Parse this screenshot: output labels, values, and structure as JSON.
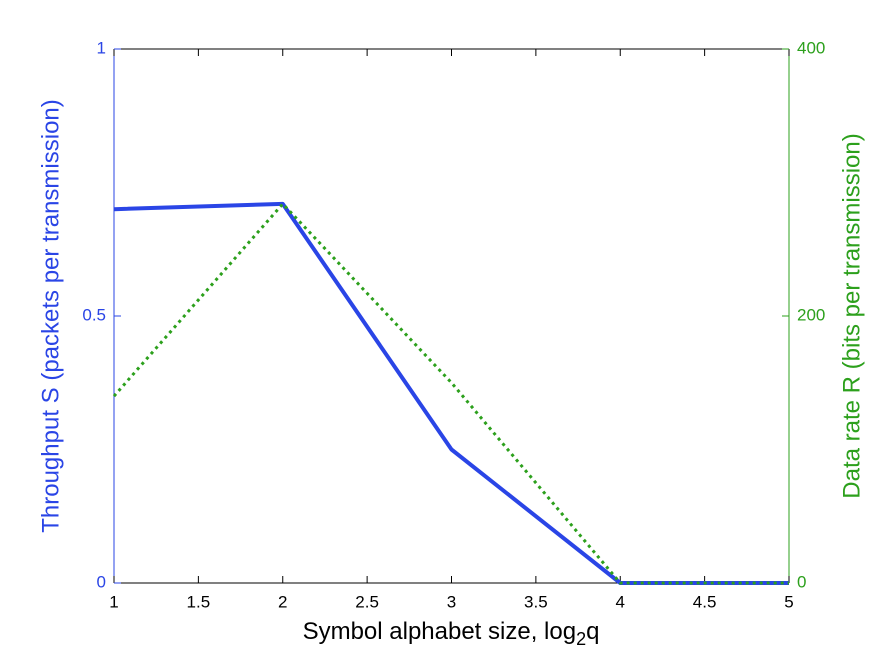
{
  "chart_data": {
    "type": "line",
    "x_label": [
      "Symbol alphabet size, log",
      "2",
      "q"
    ],
    "y_label": "Throughput S (packets per transmission)",
    "y2_label": "Data rate R (bits per transmission)",
    "x": [
      1,
      2,
      3,
      4,
      5
    ],
    "series": [
      {
        "name": "Throughput S",
        "color": "#2a45e6",
        "style": "solid",
        "values": [
          0.7,
          0.71,
          0.25,
          0,
          0
        ]
      },
      {
        "name": "Data rate R",
        "color": "#2ca01c",
        "style": "dotted",
        "axis": "y2",
        "values": [
          140,
          284,
          150,
          0,
          0
        ]
      }
    ],
    "xlim": [
      1,
      5
    ],
    "xticks": [
      1,
      1.5,
      2,
      2.5,
      3,
      3.5,
      4,
      4.5,
      5
    ],
    "ylim": [
      0,
      1
    ],
    "yticks": [
      0,
      0.5,
      1
    ],
    "y2lim": [
      0,
      400
    ],
    "y2ticks": [
      0,
      200,
      400
    ],
    "grid": false
  }
}
